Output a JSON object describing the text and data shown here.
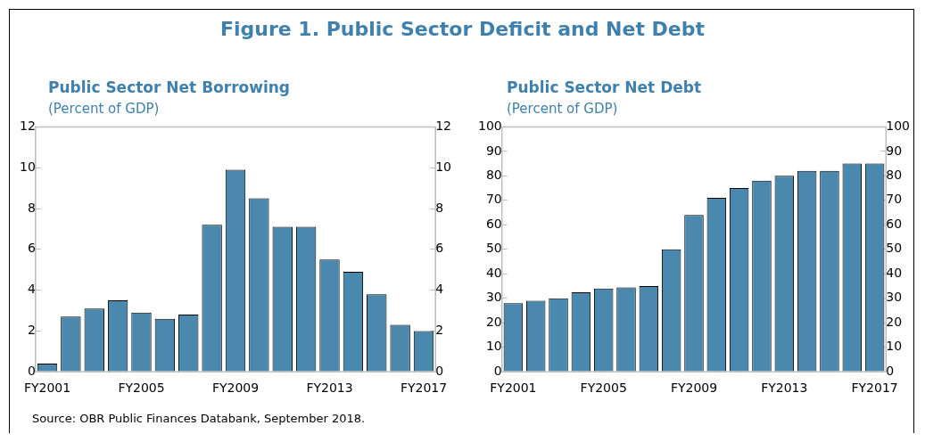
{
  "chart_data": [
    {
      "type": "bar",
      "title": "Public Sector  Net Borrowing",
      "subtitle": "(Percent of GDP)",
      "annotations": [
        "Figure 1. Public Sector Deficit and Net Debt"
      ],
      "categories": [
        "FY2001",
        null,
        null,
        null,
        "FY2005",
        null,
        null,
        null,
        "FY2009",
        null,
        null,
        null,
        "FY2013",
        null,
        null,
        null,
        "FY2017"
      ],
      "values": [
        0.4,
        2.7,
        3.1,
        3.5,
        2.9,
        2.6,
        2.8,
        7.2,
        9.9,
        8.5,
        7.1,
        7.1,
        5.5,
        4.9,
        3.8,
        2.3,
        2.0
      ],
      "color": "#4a89ad",
      "ylim": [
        0,
        12
      ],
      "yticks": [
        0,
        2,
        4,
        6,
        8,
        10,
        12
      ],
      "y2lim": [
        0,
        12
      ],
      "y2ticks": [
        0,
        2,
        4,
        6,
        8,
        10,
        12
      ],
      "grid": false,
      "legend": false
    },
    {
      "type": "bar",
      "title": "Public Sector  Net Debt",
      "subtitle": "(Percent of GDP)",
      "annotations": [
        "Source: OBR Public Finances Databank, September 2018."
      ],
      "categories": [
        "FY2001",
        null,
        null,
        null,
        "FY2005",
        null,
        null,
        null,
        "FY2009",
        null,
        null,
        null,
        "FY2013",
        null,
        null,
        null,
        "FY2017"
      ],
      "values": [
        28,
        29,
        30,
        32.5,
        34,
        34.5,
        35,
        50,
        64,
        71,
        75,
        78,
        80,
        82,
        82,
        85,
        85
      ],
      "color": "#4a89ad",
      "ylim": [
        0,
        100
      ],
      "yticks": [
        0,
        10,
        20,
        30,
        40,
        50,
        60,
        70,
        80,
        90,
        100
      ],
      "y2lim": [
        0,
        100
      ],
      "y2ticks": [
        0,
        10,
        20,
        30,
        40,
        50,
        60,
        70,
        80,
        90,
        100
      ],
      "grid": false,
      "legend": false
    }
  ]
}
